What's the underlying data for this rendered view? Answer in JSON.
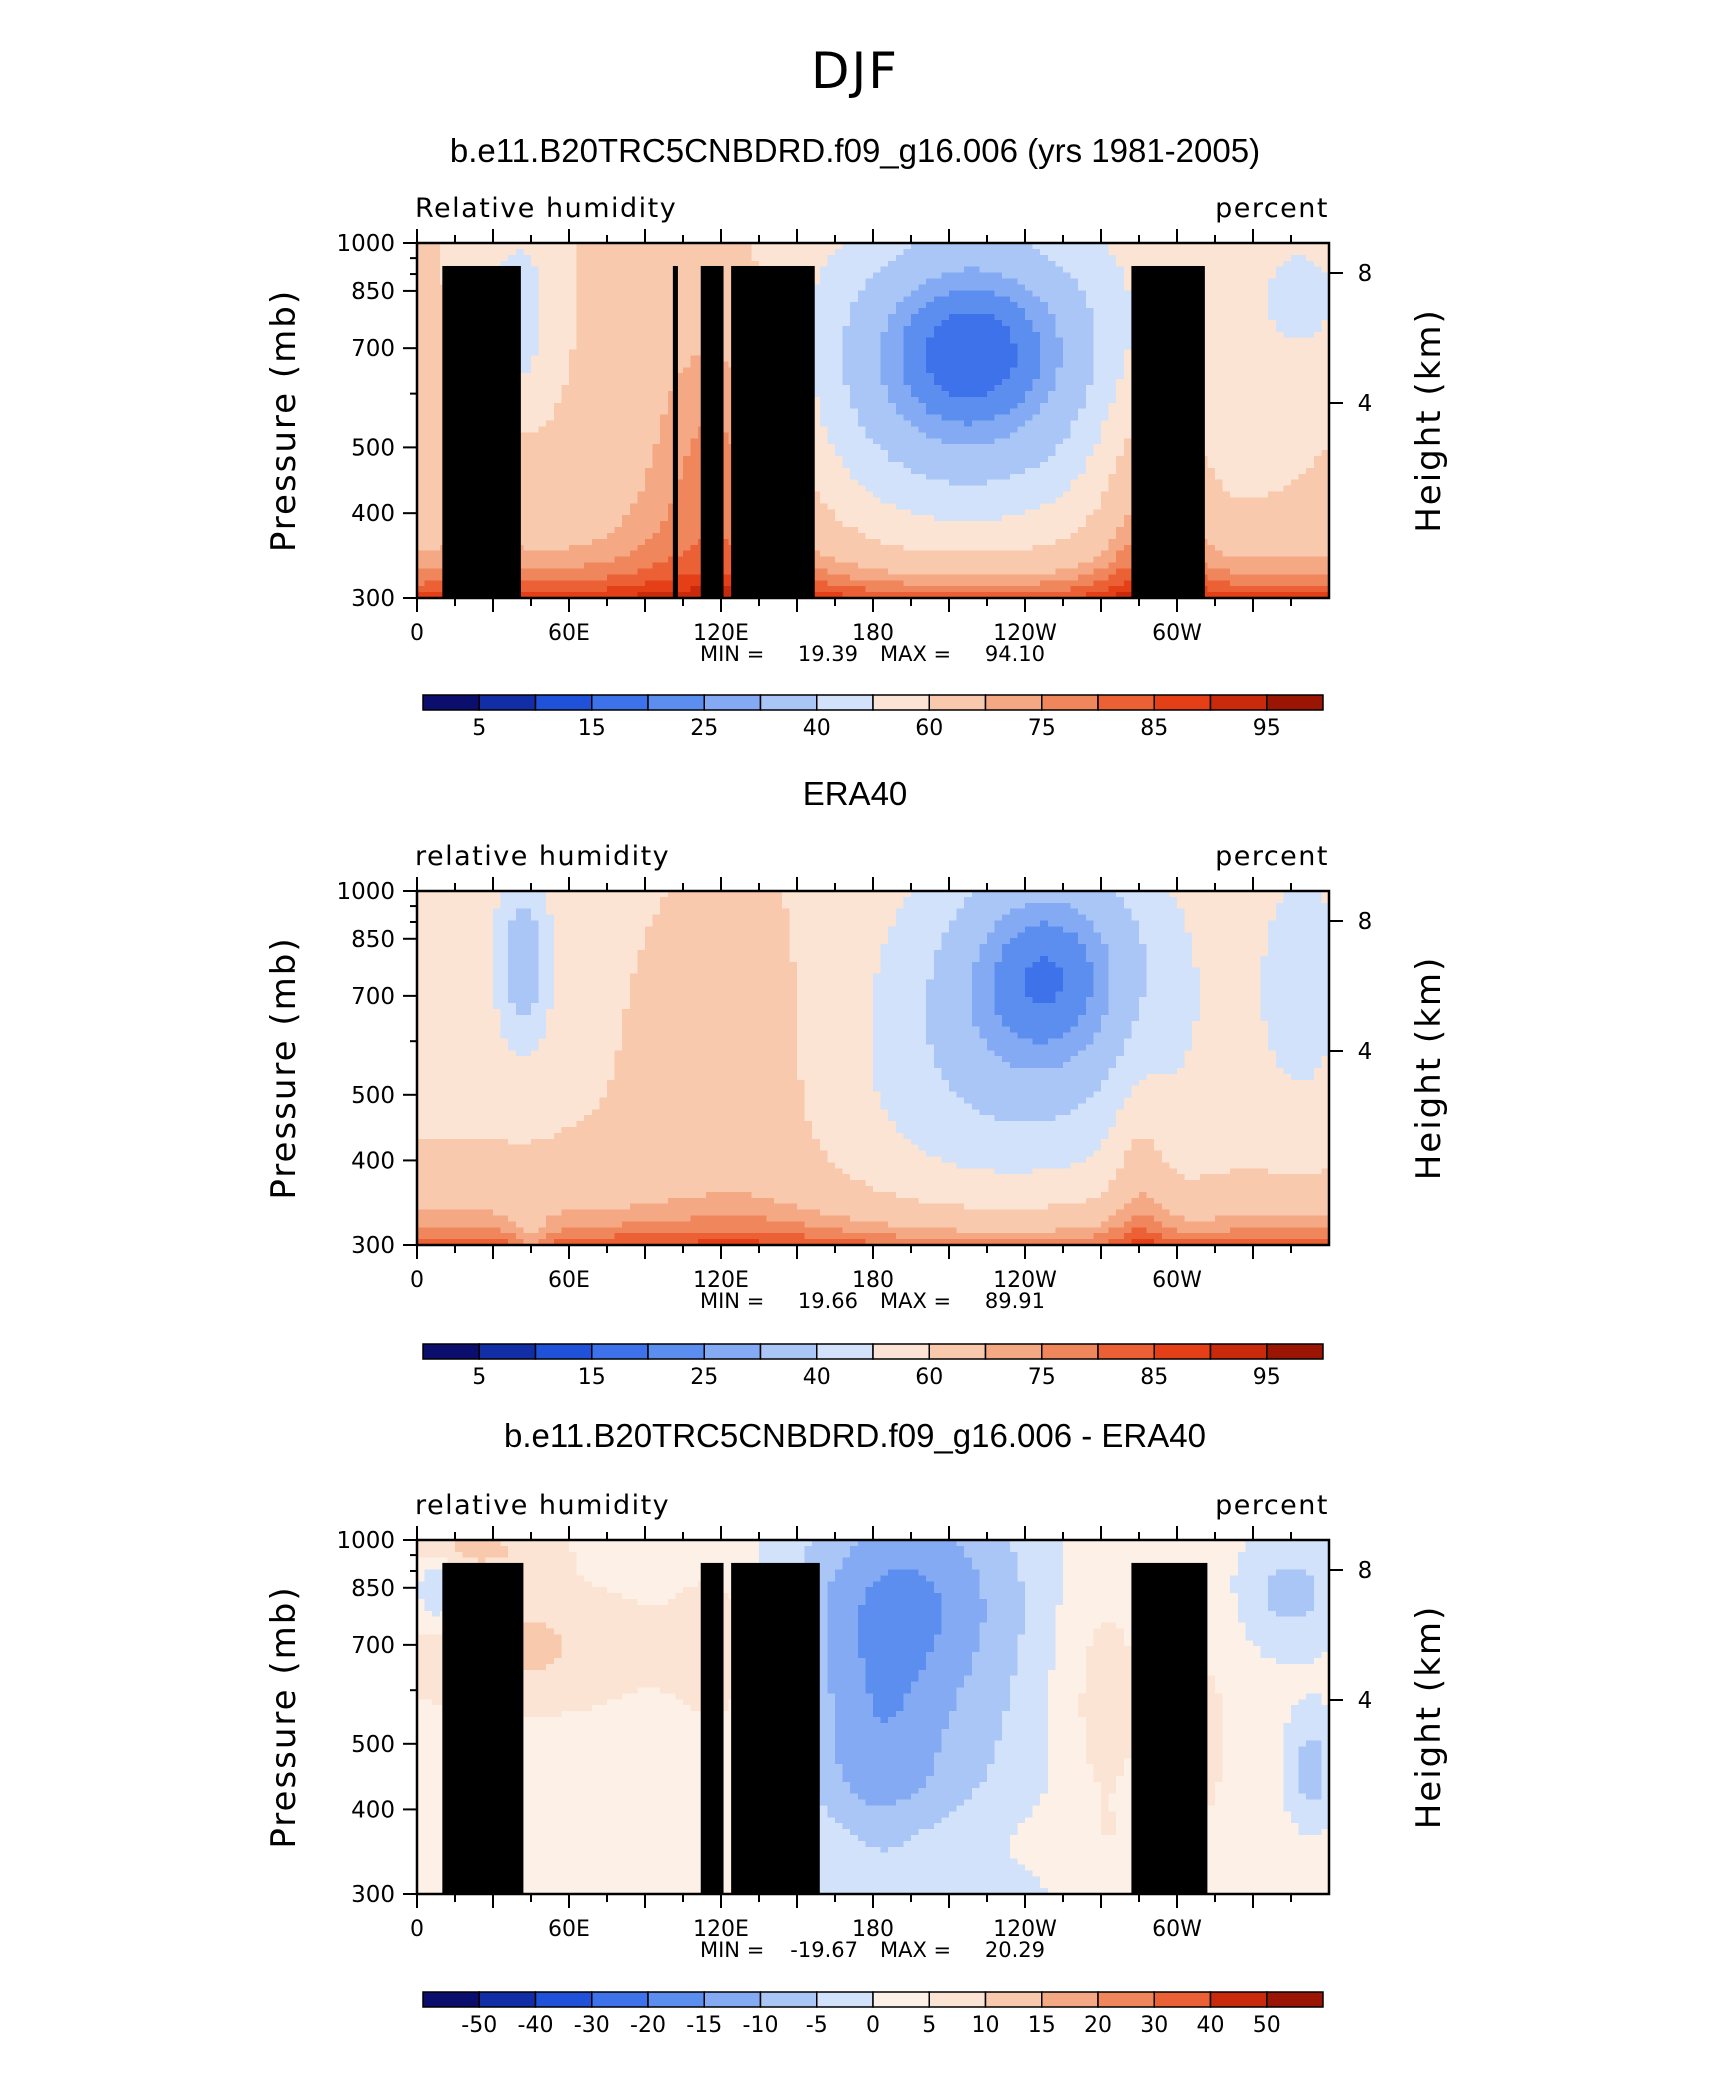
{
  "figure_title": "DJF",
  "colors": {
    "rh_levels": [
      "#0c0e6e",
      "#122ea6",
      "#1f52d9",
      "#3d72ea",
      "#5c8ef0",
      "#84aaf3",
      "#a9c6f7",
      "#d1e2fa",
      "#fbe4d3",
      "#f8c9ad",
      "#f4a884",
      "#f0865c",
      "#ec6036",
      "#e53f18",
      "#c92a0c",
      "#9b1505"
    ],
    "diff_levels": [
      "#0c0e6e",
      "#122ea6",
      "#1f52d9",
      "#3d72ea",
      "#5c8ef0",
      "#84aaf3",
      "#a9c6f7",
      "#d1e2fa",
      "#fdf0e6",
      "#fbe4d3",
      "#f8c9ad",
      "#f4a884",
      "#f0865c",
      "#ec6036",
      "#c92a0c",
      "#9b1505"
    ],
    "topography": "#000000"
  },
  "chart_data": [
    {
      "type": "heatmap",
      "title": "b.e11.B20TRC5CNBDRD.f09_g16.006 (yrs 1981-2005)",
      "left_label": "Relative humidity",
      "right_label": "percent",
      "ylabel": "Pressure (mb)",
      "y2label": "Height (km)",
      "x_ticks": [
        "0",
        "60E",
        "120E",
        "180",
        "120W",
        "60W"
      ],
      "y_ticks": [
        "300",
        "400",
        "500",
        "700",
        "850",
        "1000"
      ],
      "y2_ticks": [
        "8",
        "4"
      ],
      "ylim": [
        1000,
        300
      ],
      "min_label": "MIN =",
      "min_value": "19.39",
      "max_label": "MAX =",
      "max_value": "94.10",
      "colorbar_labels": [
        "5",
        "15",
        "25",
        "40",
        "60",
        "75",
        "85",
        "95"
      ],
      "topography_shown": true
    },
    {
      "type": "heatmap",
      "title": "ERA40",
      "left_label": "relative humidity",
      "right_label": "percent",
      "ylabel": "Pressure (mb)",
      "y2label": "Height (km)",
      "x_ticks": [
        "0",
        "60E",
        "120E",
        "180",
        "120W",
        "60W"
      ],
      "y_ticks": [
        "300",
        "400",
        "500",
        "700",
        "850",
        "1000"
      ],
      "y2_ticks": [
        "8",
        "4"
      ],
      "ylim": [
        1000,
        300
      ],
      "min_label": "MIN =",
      "min_value": "19.66",
      "max_label": "MAX =",
      "max_value": "89.91",
      "colorbar_labels": [
        "5",
        "15",
        "25",
        "40",
        "60",
        "75",
        "85",
        "95"
      ],
      "topography_shown": false
    },
    {
      "type": "heatmap",
      "title": "b.e11.B20TRC5CNBDRD.f09_g16.006 - ERA40",
      "left_label": "relative humidity",
      "right_label": "percent",
      "ylabel": "Pressure (mb)",
      "y2label": "Height (km)",
      "x_ticks": [
        "0",
        "60E",
        "120E",
        "180",
        "120W",
        "60W"
      ],
      "y_ticks": [
        "300",
        "400",
        "500",
        "700",
        "850",
        "1000"
      ],
      "y2_ticks": [
        "8",
        "4"
      ],
      "ylim": [
        1000,
        300
      ],
      "min_label": "MIN =",
      "min_value": "-19.67",
      "max_label": "MAX =",
      "max_value": "20.29",
      "colorbar_labels": [
        "-50",
        "-40",
        "-30",
        "-20",
        "-15",
        "-10",
        "-5",
        "0",
        "5",
        "10",
        "15",
        "20",
        "30",
        "40",
        "50"
      ],
      "topography_shown": true
    }
  ]
}
